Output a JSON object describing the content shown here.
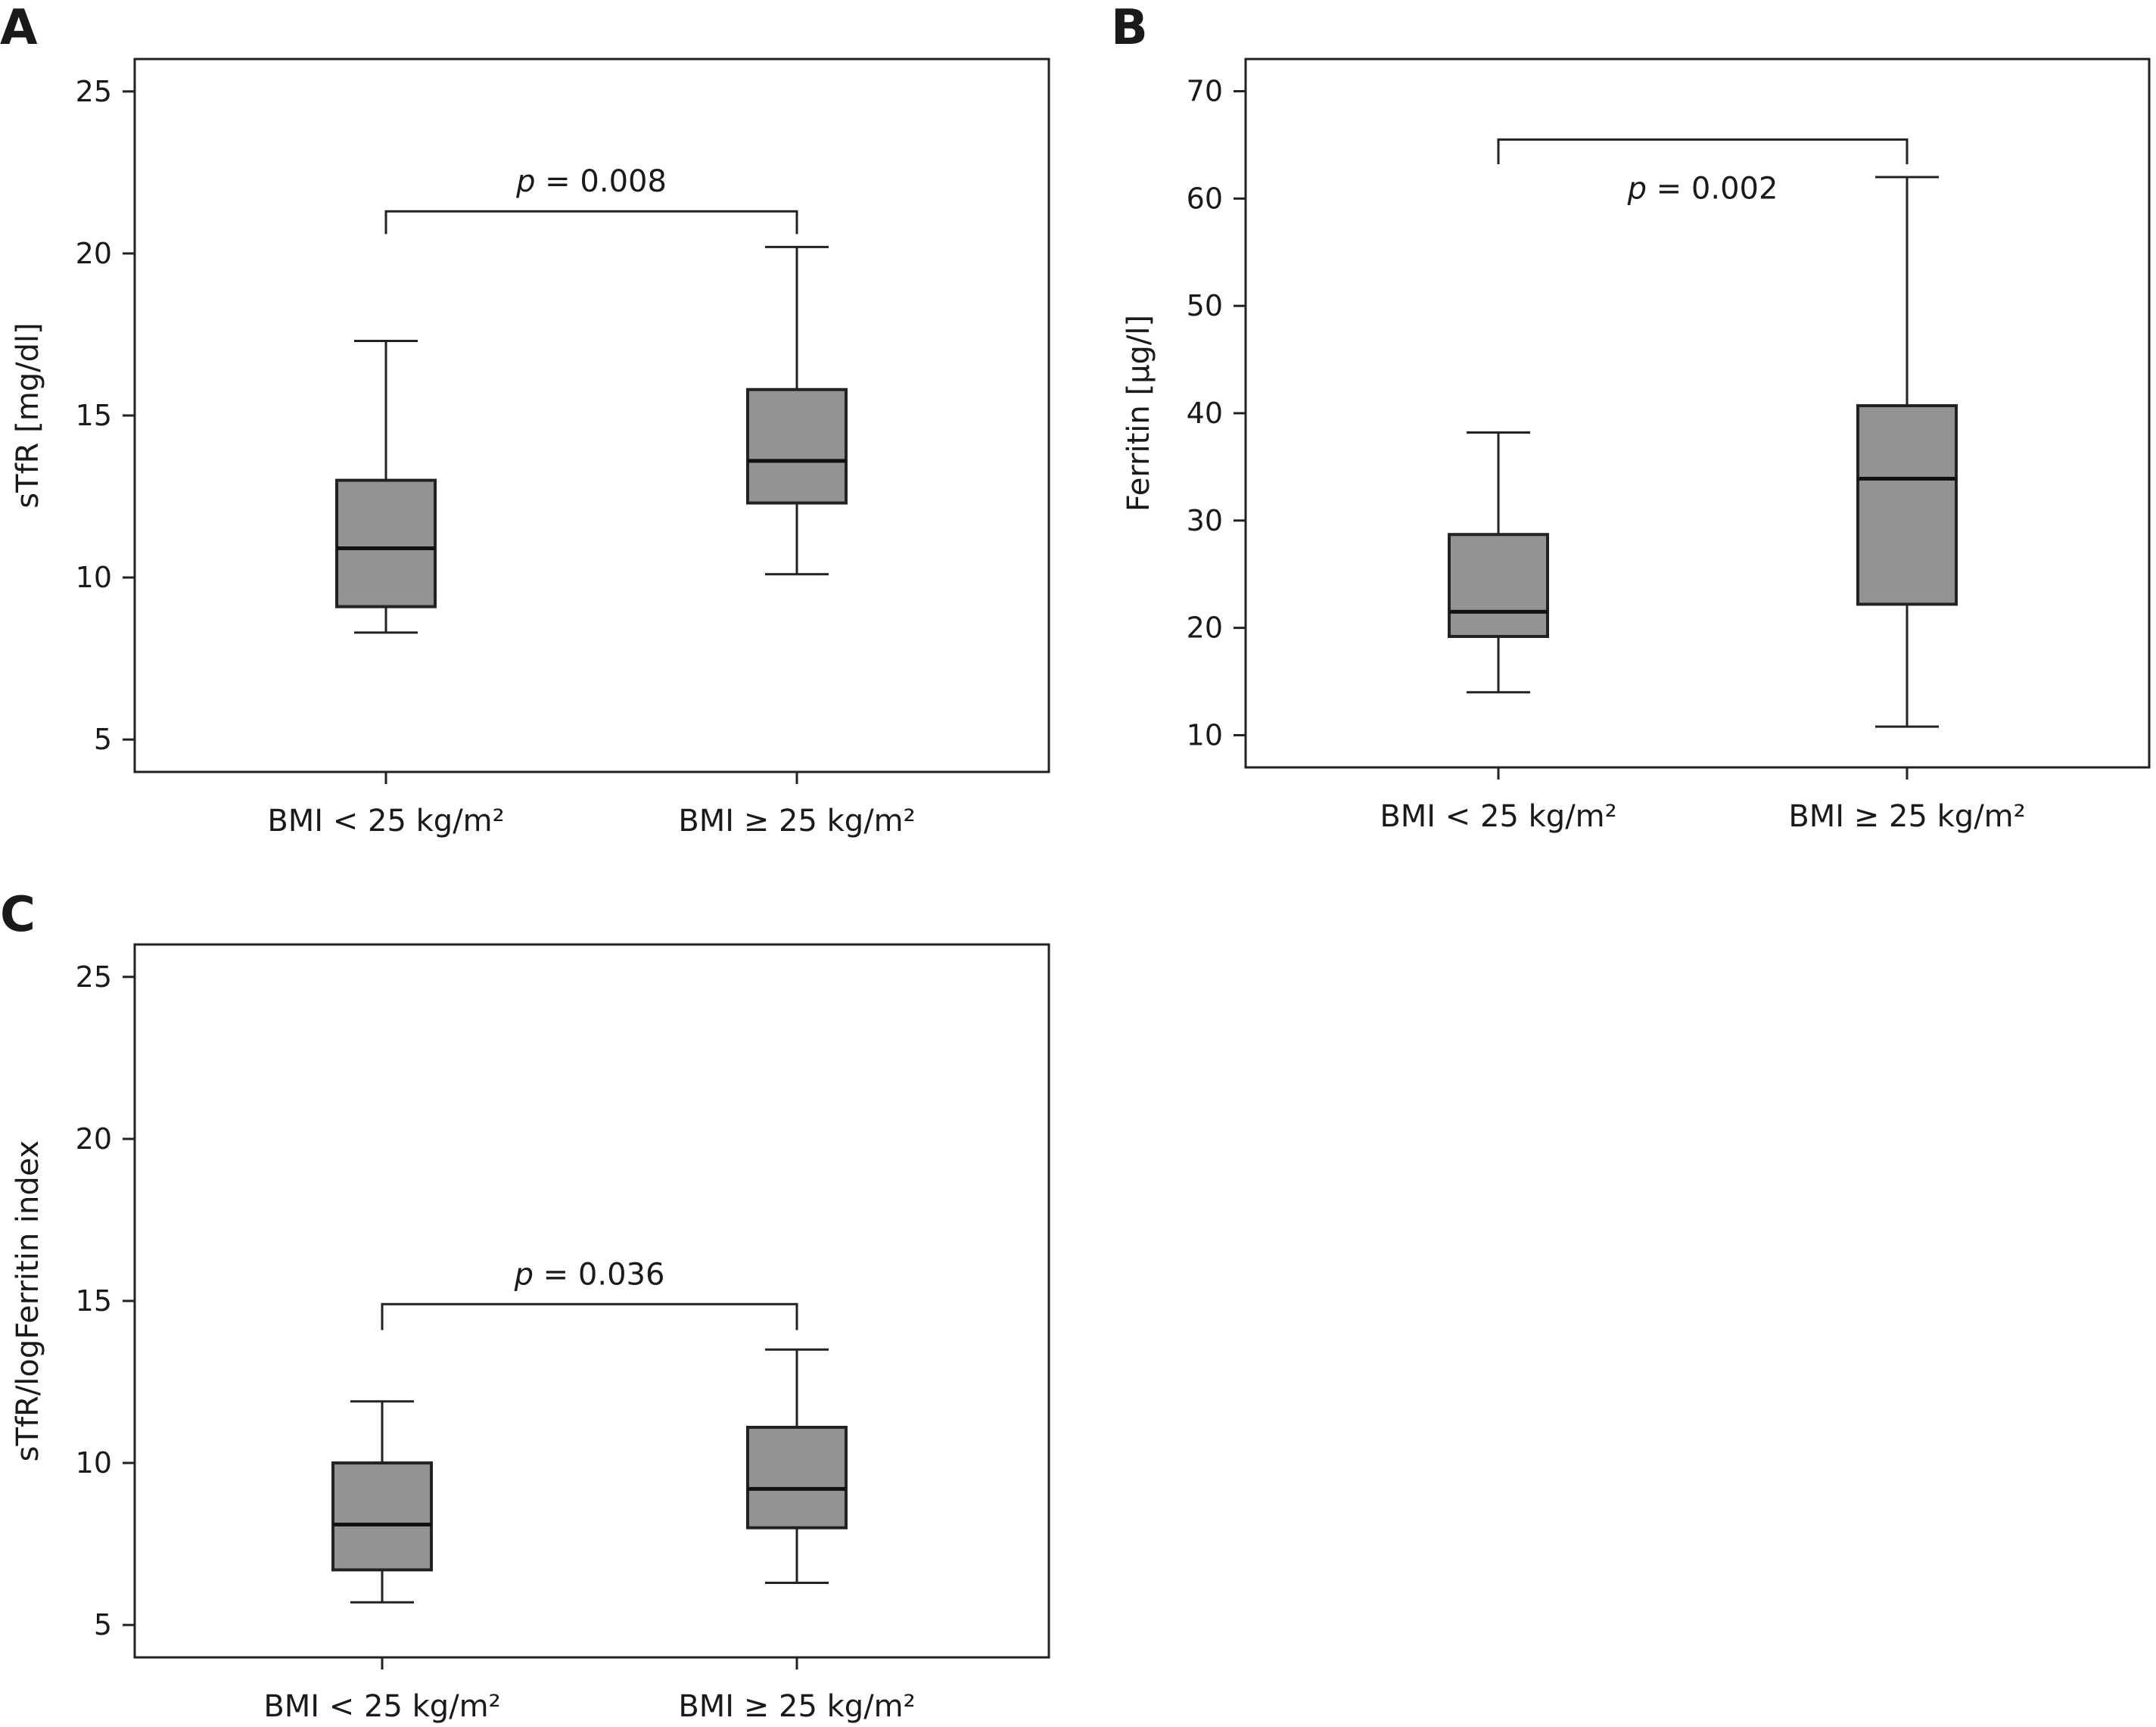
{
  "chart_data": [
    {
      "type": "box",
      "panel": "A",
      "ylabel": "sTfR [mg/dl]",
      "ylim": [
        4,
        26
      ],
      "yticks": [
        5,
        10,
        15,
        20,
        25
      ],
      "categories": [
        "BMI < 25 kg/m²",
        "BMI ≥ 25 kg/m²"
      ],
      "boxes": [
        {
          "min": 8.3,
          "q1": 9.1,
          "median": 10.9,
          "q3": 13.0,
          "max": 17.3
        },
        {
          "min": 10.1,
          "q1": 12.3,
          "median": 13.6,
          "q3": 15.8,
          "max": 20.2
        }
      ],
      "comparison": {
        "label": "p = 0.008",
        "p_prefix": "p",
        "p_rest": " = 0.008",
        "y": 21.3,
        "tip": 20.6,
        "label_pos": "above"
      },
      "fill_color": "#939393",
      "grid": false
    },
    {
      "type": "box",
      "panel": "B",
      "ylabel": "Ferritin [µg/l]",
      "ylim": [
        7,
        73
      ],
      "yticks": [
        10,
        20,
        30,
        40,
        50,
        60,
        70
      ],
      "categories": [
        "BMI < 25 kg/m²",
        "BMI ≥ 25 kg/m²"
      ],
      "boxes": [
        {
          "min": 14.0,
          "q1": 19.2,
          "median": 21.5,
          "q3": 28.7,
          "max": 38.2
        },
        {
          "min": 10.8,
          "q1": 22.2,
          "median": 33.9,
          "q3": 40.7,
          "max": 62.0
        }
      ],
      "comparison": {
        "label": "p = 0.002",
        "p_prefix": "p",
        "p_rest": " = 0.002",
        "y": 65.5,
        "tip": 63.2,
        "label_pos": "below"
      },
      "fill_color": "#939393",
      "grid": false
    },
    {
      "type": "box",
      "panel": "C",
      "ylabel": "sTfR/logFerritin index",
      "ylim": [
        4,
        26
      ],
      "yticks": [
        5,
        10,
        15,
        20,
        25
      ],
      "categories": [
        "BMI < 25 kg/m²",
        "BMI ≥ 25 kg/m²"
      ],
      "boxes": [
        {
          "min": 5.7,
          "q1": 6.7,
          "median": 8.1,
          "q3": 10.0,
          "max": 11.9
        },
        {
          "min": 6.3,
          "q1": 8.0,
          "median": 9.2,
          "q3": 11.1,
          "max": 13.5
        }
      ],
      "comparison": {
        "label": "p = 0.036",
        "p_prefix": "p",
        "p_rest": " = 0.036",
        "y": 14.9,
        "tip": 14.1,
        "label_pos": "above"
      },
      "fill_color": "#939393",
      "grid": false
    }
  ]
}
